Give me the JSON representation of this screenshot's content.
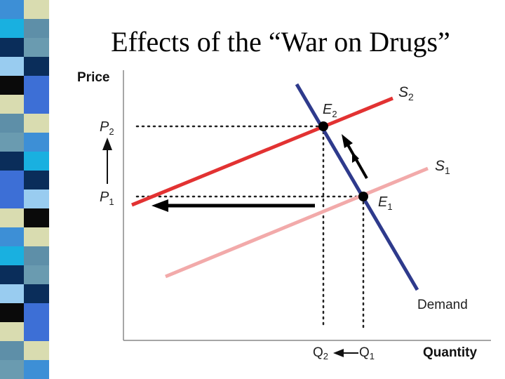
{
  "title": "Effects of the “War on Drugs”",
  "axes": {
    "y_label": "Price",
    "x_label": "Quantity"
  },
  "curves": {
    "supply_new": {
      "letter": "S",
      "sub": "2",
      "color": "#e23232"
    },
    "supply_old": {
      "letter": "S",
      "sub": "1",
      "color": "#f2aaaa"
    },
    "demand": {
      "label": "Demand",
      "color": "#2e3a8c"
    }
  },
  "points": {
    "e2": {
      "letter": "E",
      "sub": "2"
    },
    "e1": {
      "letter": "E",
      "sub": "1"
    }
  },
  "price_labels": {
    "p2": {
      "letter": "P",
      "sub": "2"
    },
    "p1": {
      "letter": "P",
      "sub": "1"
    }
  },
  "quantity_labels": {
    "q2": {
      "letter": "Q",
      "sub": "2"
    },
    "q1": {
      "letter": "Q",
      "sub": "1"
    }
  },
  "stripe_colors": [
    "#3d8fd6",
    "#6a9bb0",
    "#0a2d5a",
    "#3d6fd6",
    "#0a0a0a",
    "#d9dcb0",
    "#5e8fa8",
    "#19b0e0",
    "#0a2d5a",
    "#99ccf0",
    "#3d6fd6",
    "#d9dcb0"
  ]
}
